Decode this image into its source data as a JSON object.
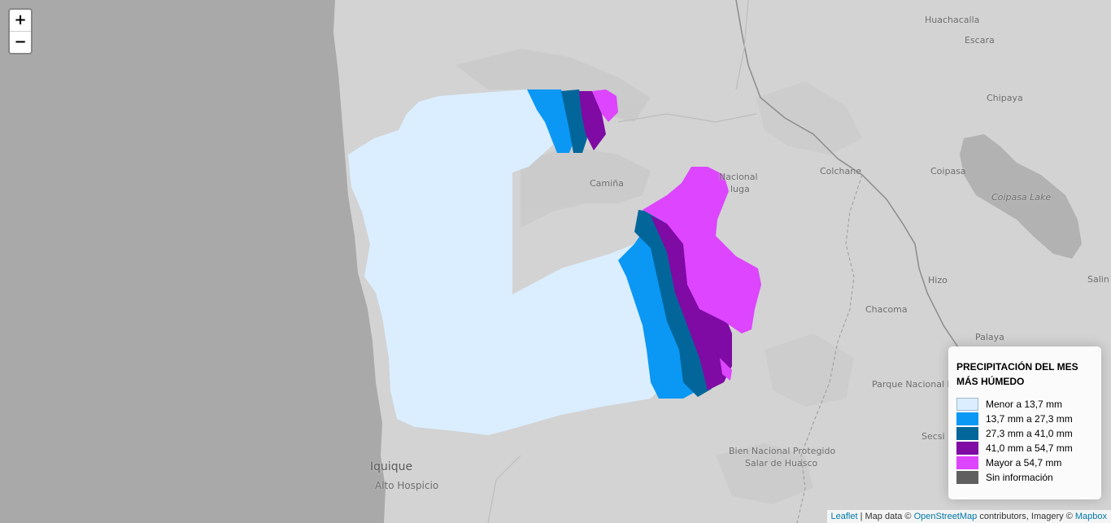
{
  "map": {
    "zoom_in": "+",
    "zoom_out": "−",
    "labels": [
      {
        "id": "huachacalla",
        "text": "Huachacalla"
      },
      {
        "id": "escara",
        "text": "Escara"
      },
      {
        "id": "chipaya",
        "text": "Chipaya"
      },
      {
        "id": "colchane",
        "text": "Colchane"
      },
      {
        "id": "coipasa",
        "text": "Coipasa"
      },
      {
        "id": "coipasa-lake",
        "text": "Coipasa Lake"
      },
      {
        "id": "camina",
        "text": "Camiña"
      },
      {
        "id": "nacional",
        "text": "Nacional"
      },
      {
        "id": "isluga",
        "text": "luga"
      },
      {
        "id": "hizo",
        "text": "Hizo"
      },
      {
        "id": "chacoma",
        "text": "Chacoma"
      },
      {
        "id": "palaya",
        "text": "Palaya"
      },
      {
        "id": "parque-nacional",
        "text": "Parque Nacional L"
      },
      {
        "id": "secsi",
        "text": "Secsi"
      },
      {
        "id": "salin",
        "text": "Salin"
      },
      {
        "id": "bien-nacional-1",
        "text": "Bien Nacional Protegido"
      },
      {
        "id": "bien-nacional-2",
        "text": "Salar de Huasco"
      },
      {
        "id": "iquique",
        "text": "Iquique"
      },
      {
        "id": "alto-hospicio",
        "text": "Alto Hospicio"
      }
    ]
  },
  "legend": {
    "title": "PRECIPITACIÓN DEL MES MÁS HÚMEDO",
    "items": [
      {
        "label": "Menor a 13,7 mm",
        "color": "#dbeeff"
      },
      {
        "label": "13,7 mm a 27,3 mm",
        "color": "#0b97f4"
      },
      {
        "label": "27,3 mm a 41,0 mm",
        "color": "#03669a"
      },
      {
        "label": "41,0 mm a 54,7 mm",
        "color": "#7f0aa4"
      },
      {
        "label": "Mayor a 54,7 mm",
        "color": "#dd45ff"
      },
      {
        "label": "Sin información",
        "color": "#5f5f5f"
      }
    ]
  },
  "attribution": {
    "leaflet": "Leaflet",
    "sep": " | Map data © ",
    "osm": "OpenStreetMap",
    "mid": " contributors, Imagery © ",
    "mapbox": "Mapbox"
  }
}
